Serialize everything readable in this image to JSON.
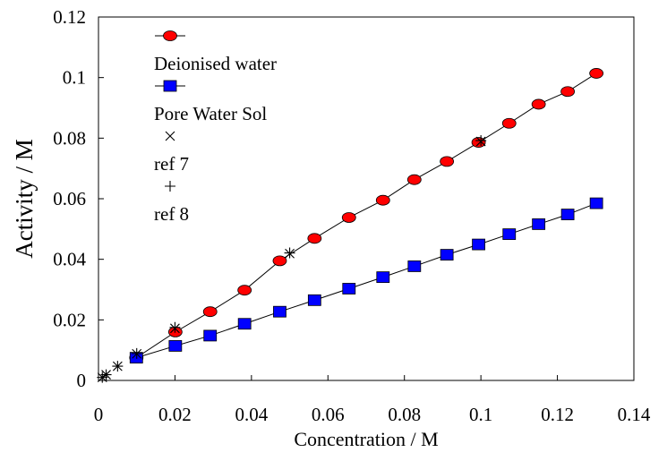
{
  "chart_data": {
    "type": "scatter",
    "xlabel": "Concentration / M",
    "ylabel": "Activity / M",
    "xlim": [
      0,
      0.14
    ],
    "ylim": [
      0,
      0.12
    ],
    "xticks": [
      "0",
      "0.02",
      "0.04",
      "0.06",
      "0.08",
      "0.1",
      "0.12",
      "0.14"
    ],
    "yticks": [
      "0",
      "0.02",
      "0.04",
      "0.06",
      "0.08",
      "0.1",
      "0.12"
    ],
    "legend_position": "top-left",
    "grid": false,
    "series": [
      {
        "name": "Deionised water",
        "marker": "circle",
        "line": true,
        "color": "#ff0000",
        "x": [
          0.0099,
          0.0201,
          0.0292,
          0.0382,
          0.0474,
          0.0565,
          0.0655,
          0.0744,
          0.0826,
          0.0911,
          0.0994,
          0.1074,
          0.1151,
          0.1227,
          0.1302
        ],
        "y": [
          0.0075,
          0.016,
          0.0227,
          0.0298,
          0.0395,
          0.0469,
          0.0538,
          0.0595,
          0.0663,
          0.0723,
          0.0786,
          0.0849,
          0.0912,
          0.0954,
          0.1014
        ]
      },
      {
        "name": "Pore Water Sol",
        "marker": "square",
        "line": true,
        "color": "#0000ff",
        "x": [
          0.0099,
          0.0201,
          0.0292,
          0.0382,
          0.0474,
          0.0565,
          0.0655,
          0.0744,
          0.0826,
          0.0911,
          0.0994,
          0.1074,
          0.1151,
          0.1227,
          0.1302
        ],
        "y": [
          0.0075,
          0.0114,
          0.0148,
          0.0187,
          0.0227,
          0.0265,
          0.0303,
          0.0341,
          0.0377,
          0.0415,
          0.0449,
          0.0483,
          0.0516,
          0.0548,
          0.0585
        ]
      },
      {
        "name": "ref 7",
        "marker": "x",
        "line": false,
        "color": "#000000",
        "x": [
          0.001,
          0.002,
          0.005,
          0.01,
          0.02,
          0.05,
          0.1
        ],
        "y": [
          0.001,
          0.0019,
          0.0047,
          0.0088,
          0.0172,
          0.0419,
          0.0789
        ]
      },
      {
        "name": "ref 8",
        "marker": "plus",
        "line": false,
        "color": "#000000",
        "x": [
          0.001,
          0.002,
          0.005,
          0.01,
          0.02,
          0.05,
          0.1
        ],
        "y": [
          0.001,
          0.0019,
          0.0047,
          0.0089,
          0.0175,
          0.0421,
          0.0792
        ]
      }
    ]
  }
}
